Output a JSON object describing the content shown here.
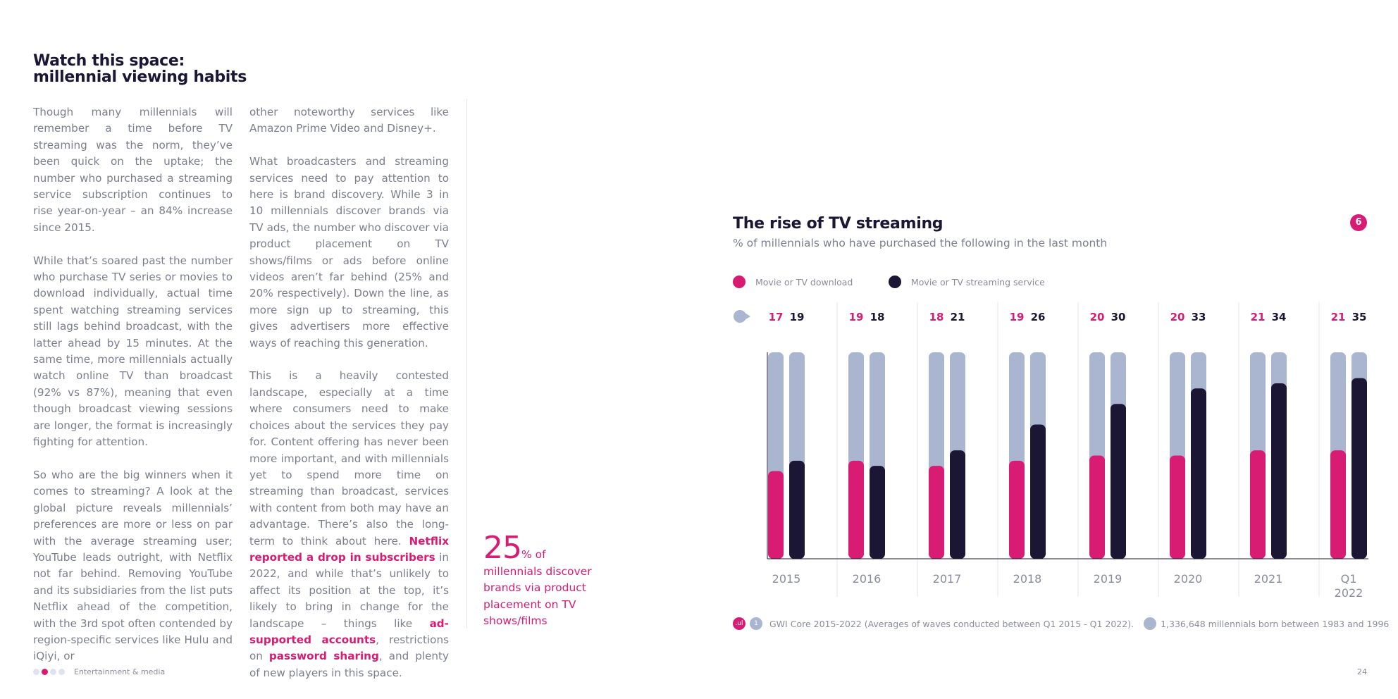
{
  "article": {
    "heading_line1": "Watch this space:",
    "heading_line2": "millennial viewing habits",
    "col1": [
      "Though many millennials will remember a time before TV streaming was the norm, they’ve been quick on the uptake; the number who purchased a streaming service subscription continues to rise year-on-year – an 84% increase since 2015.",
      "While that’s soared past the number who purchase TV series or movies to download individually, actual time spent watching streaming services still lags behind broadcast, with the latter ahead by 15 minutes. At the same time, more millennials actually watch online TV than broadcast (92% vs 87%), meaning that even though broadcast viewing sessions are longer, the format is increasingly fighting for attention.",
      "So who are the big winners when it comes to streaming? A look at the global picture reveals millennials’ preferences are more or less on par with the average streaming user; YouTube leads outright, with Netflix not far behind. Removing YouTube and its subsidiaries from the list puts Netflix ahead of the competition, with the 3rd spot often contended by region-specific services like Hulu and iQiyi, or"
    ],
    "col2_p1": "other noteworthy services like Amazon Prime Video and Disney+.",
    "col2_p2": "What broadcasters and streaming services need to pay attention to here is brand discovery. While 3 in 10 millennials discover brands via TV ads, the number who discover via product placement on TV shows/films or ads before online videos aren’t far behind (25% and 20% respectively). Down the line, as more sign up to streaming, this gives advertisers more effective ways of reaching this generation.",
    "col2_p3": {
      "text1": "This is a heavily contested landscape, especially at a time where consumers need to make choices about the services they pay for. Content offering has never been more important, and with millennials yet to spend more time on streaming than broadcast, services with content from both may have an advantage. There’s also the long-term to think about here. ",
      "link1": "Netflix reported a drop in subscribers",
      "text2": " in 2022, and while that’s unlikely to affect its position at the top, it’s likely to bring in change for the landscape – things like ",
      "link2": "ad-supported accounts",
      "text3": ", restrictions on ",
      "link3": "password sharing",
      "text4": ", and plenty of new players in this space."
    }
  },
  "stat": {
    "number": "25",
    "unit": "% of",
    "text": "millennials discover brands via product placement on TV shows/films"
  },
  "chart_header": {
    "title": "The rise of TV streaming",
    "subtitle": "% of millennials who have purchased the following in the last month",
    "badge": "6"
  },
  "chart_data": {
    "type": "bar",
    "title": "The rise of TV streaming",
    "subtitle": "% of millennials who have purchased the following in the last month",
    "categories": [
      "2015",
      "2016",
      "2017",
      "2018",
      "2019",
      "2020",
      "2021",
      "Q1 2022"
    ],
    "series": [
      {
        "name": "Movie or TV download",
        "color": "#d81b73",
        "values": [
          17,
          19,
          18,
          19,
          20,
          20,
          21,
          21
        ]
      },
      {
        "name": "Movie or TV streaming service",
        "color": "#1a1634",
        "values": [
          19,
          18,
          21,
          26,
          30,
          33,
          34,
          35
        ]
      }
    ],
    "ylim": [
      0,
      40
    ],
    "background_color": "#aab6cf",
    "legend_position": "top-left",
    "grid": false
  },
  "source": {
    "icon1": ".ul",
    "icon2": "1",
    "text1": "GWI Core 2015-2022 (Averages of waves conducted between Q1 2015 - Q1 2022).",
    "text2": "1,336,648 millennials born between 1983 and 1996"
  },
  "footer": {
    "section": "Entertainment & media",
    "page": "24"
  }
}
